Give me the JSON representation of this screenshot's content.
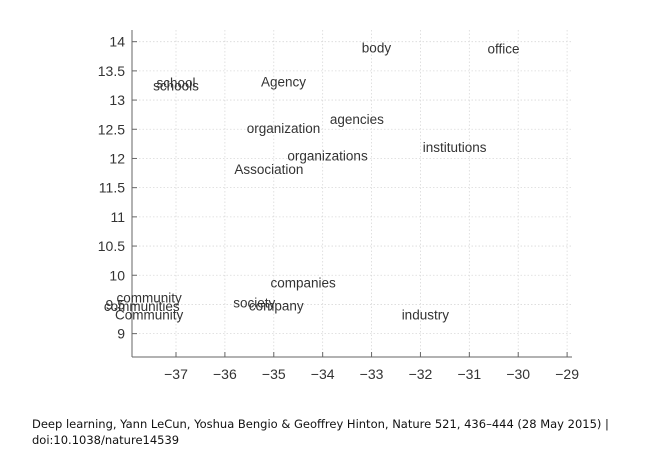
{
  "chart_data": {
    "type": "scatter",
    "title": "",
    "xlabel": "",
    "ylabel": "",
    "xlim": [
      -37.9,
      -28.9
    ],
    "ylim": [
      8.6,
      14.2
    ],
    "xticks": [
      -37,
      -36,
      -35,
      -34,
      -33,
      -32,
      -31,
      -30,
      -29
    ],
    "yticks": [
      9,
      9.5,
      10,
      10.5,
      11,
      11.5,
      12,
      12.5,
      13,
      13.5,
      14
    ],
    "grid": true,
    "points": [
      {
        "label": "body",
        "x": -32.9,
        "y": 13.9
      },
      {
        "label": "office",
        "x": -30.3,
        "y": 13.88
      },
      {
        "label": "school",
        "x": -37.0,
        "y": 13.3
      },
      {
        "label": "schools",
        "x": -37.0,
        "y": 13.25
      },
      {
        "label": "Agency",
        "x": -34.8,
        "y": 13.32
      },
      {
        "label": "agencies",
        "x": -33.3,
        "y": 12.68
      },
      {
        "label": "organization",
        "x": -34.8,
        "y": 12.52
      },
      {
        "label": "institutions",
        "x": -31.3,
        "y": 12.2
      },
      {
        "label": "organizations",
        "x": -33.9,
        "y": 12.05
      },
      {
        "label": "Association",
        "x": -35.1,
        "y": 11.82
      },
      {
        "label": "companies",
        "x": -34.4,
        "y": 9.88
      },
      {
        "label": "community",
        "x": -37.55,
        "y": 9.62
      },
      {
        "label": "communities",
        "x": -37.7,
        "y": 9.47
      },
      {
        "label": "Community",
        "x": -37.55,
        "y": 9.33
      },
      {
        "label": "society",
        "x": -35.4,
        "y": 9.53
      },
      {
        "label": "company",
        "x": -34.95,
        "y": 9.48
      },
      {
        "label": "industry",
        "x": -31.9,
        "y": 9.33
      }
    ]
  },
  "caption": {
    "line1": "Deep learning, Yann LeCun, Yoshua Bengio & Geoffrey Hinton, Nature 521, 436–444 (28 May 2015) |",
    "line2": "doi:10.1038/nature14539"
  }
}
